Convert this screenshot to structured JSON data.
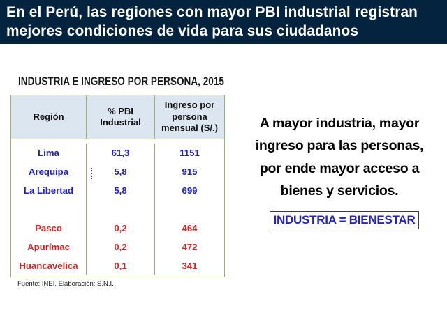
{
  "header": {
    "line1": "En el Perú, las regiones con mayor PBI industrial registran",
    "line2": "mejores condiciones de vida para sus ciudadanos"
  },
  "table": {
    "title": "INDUSTRIA E INGRESO POR PERSONA, 2015",
    "columns": {
      "region": "Región",
      "pbi": "% PBI\nIndustrial",
      "ingreso": "Ingreso por\npersona\nmensual (S/.)"
    },
    "rows": [
      {
        "region": "Lima",
        "pbi": "61,3",
        "ingreso": "1151"
      },
      {
        "region": "Arequipa",
        "pbi": "5,8",
        "ingreso": "915"
      },
      {
        "region": "La Libertad",
        "pbi": "5,8",
        "ingreso": "699"
      },
      {
        "region": "",
        "pbi": "",
        "ingreso": ""
      },
      {
        "region": "Pasco",
        "pbi": "0,2",
        "ingreso": "464"
      },
      {
        "region": "Apurímac",
        "pbi": "0,2",
        "ingreso": "472"
      },
      {
        "region": "Huancavelica",
        "pbi": "0,1",
        "ingreso": "341"
      }
    ],
    "source": "Fuente: INEI. Elaboración: S.N.I."
  },
  "message": {
    "text": "A mayor industria, mayor\ningreso para las personas,\npor ende mayor acceso a\nbienes y servicios."
  },
  "badge": {
    "label": "INDUSTRIA = BIENESTAR"
  },
  "colors": {
    "title_bar": "#04233e",
    "table_header_bg": "#dce6f1",
    "table_border": "#9cae74",
    "top_rows_text": "#2020c8",
    "bottom_rows_text": "#d42525"
  }
}
